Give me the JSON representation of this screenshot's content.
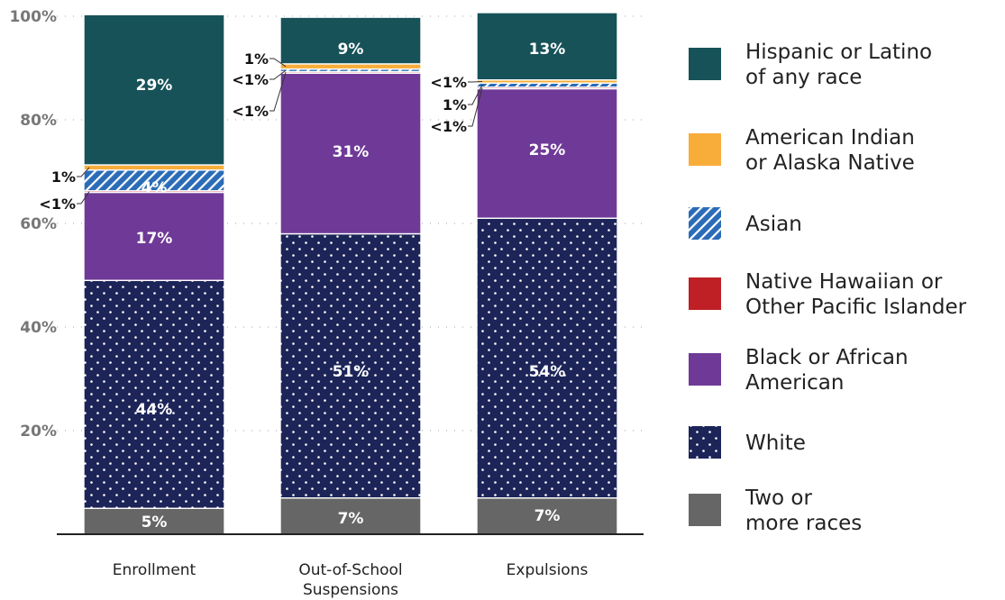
{
  "chart_data": {
    "type": "bar",
    "stacked": true,
    "title": "",
    "xlabel": "",
    "ylabel": "",
    "ylim": [
      0,
      100
    ],
    "yticks": [
      "20%",
      "40%",
      "60%",
      "80%",
      "100%"
    ],
    "grid": true,
    "legend_position": "right",
    "categories": [
      {
        "lines": [
          "Enrollment"
        ]
      },
      {
        "lines": [
          "Out-of-School",
          "Suspensions"
        ]
      },
      {
        "lines": [
          "Expulsions"
        ]
      }
    ],
    "series": [
      {
        "name_lines": [
          "Two or",
          "more races"
        ],
        "color": "#666666",
        "pattern": "solid",
        "values": [
          5,
          7,
          7
        ],
        "labels": [
          "5%",
          "7%",
          "7%"
        ]
      },
      {
        "name_lines": [
          "White"
        ],
        "color": "#1c2458",
        "pattern": "dots",
        "values": [
          44,
          51,
          54
        ],
        "labels": [
          "44%",
          "51%",
          "54%"
        ]
      },
      {
        "name_lines": [
          "Black or African",
          "American"
        ],
        "color": "#6f3a97",
        "pattern": "solid",
        "values": [
          17,
          31,
          25
        ],
        "labels": [
          "17%",
          "31%",
          "25%"
        ]
      },
      {
        "name_lines": [
          "Native Hawaiian or",
          "Other Pacific Islander"
        ],
        "color": "#be2026",
        "pattern": "solid",
        "values": [
          0.3,
          0.3,
          0.3
        ],
        "labels": [
          "<1%",
          "<1%",
          "<1%"
        ]
      },
      {
        "name_lines": [
          "Asian"
        ],
        "color": "#2b6cb8",
        "pattern": "hatch",
        "values": [
          4,
          0.5,
          0.8
        ],
        "labels": [
          "4%",
          "<1%",
          "1%"
        ]
      },
      {
        "name_lines": [
          "American Indian",
          "or Alaska Native"
        ],
        "color": "#f8ad3a",
        "pattern": "solid",
        "values": [
          1,
          1,
          0.6
        ],
        "labels": [
          "1%",
          "1%",
          "<1%"
        ]
      },
      {
        "name_lines": [
          "Hispanic or Latino",
          "of any race"
        ],
        "color": "#175259",
        "pattern": "solid",
        "values": [
          29,
          9,
          13
        ],
        "labels": [
          "29%",
          "9%",
          "13%"
        ]
      }
    ]
  }
}
